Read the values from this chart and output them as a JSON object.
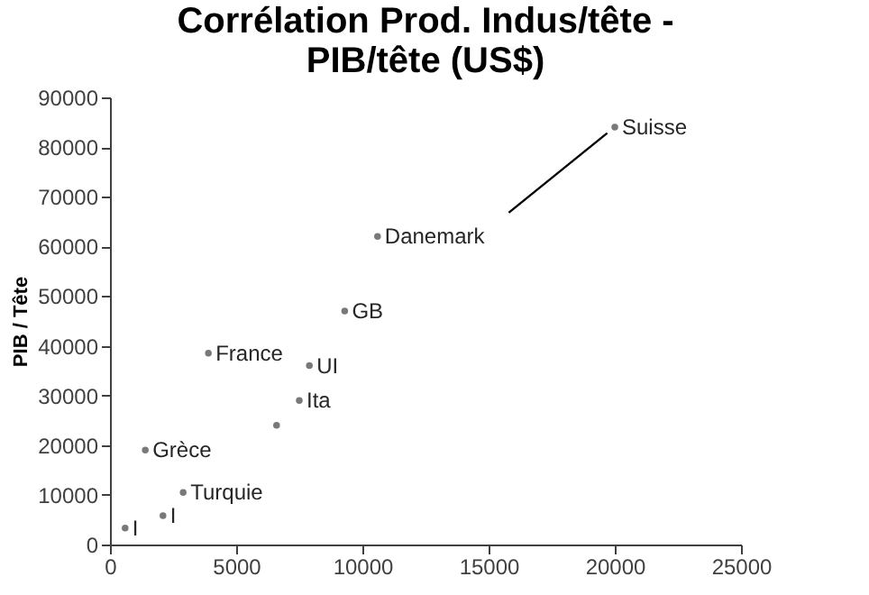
{
  "chart_data": {
    "type": "scatter",
    "title": "Corrélation Prod. Indus/tête - PIB/tête (US$)",
    "ylabel": "PIB / Tête",
    "x": [
      20000,
      10600,
      9300,
      3900,
      7900,
      7500,
      1400,
      2900,
      600,
      2100,
      6600
    ],
    "series": [
      {
        "color": "#404040",
        "marker": "circle",
        "values": [
          84000,
          62000,
          47000,
          38500,
          36000,
          29000,
          19000,
          10500,
          3300,
          5800,
          24000
        ],
        "value_labels": [
          "Suisse",
          "Danemark",
          "GB",
          "France",
          "UI",
          "Ita",
          "Grèce",
          "Turquie",
          "I",
          "I",
          null
        ]
      },
      {
        "type": "line",
        "color": "#000000",
        "x": [
          15800,
          19700
        ],
        "values": [
          66800,
          82800
        ]
      }
    ],
    "xlim": [
      0,
      25000
    ],
    "xticks": [
      0,
      5000,
      10000,
      15000,
      20000,
      25000
    ],
    "ylim": [
      0,
      90000
    ],
    "yticks": [
      0,
      10000,
      20000,
      30000,
      40000,
      50000,
      60000,
      70000,
      80000,
      90000
    ],
    "grid": false
  }
}
